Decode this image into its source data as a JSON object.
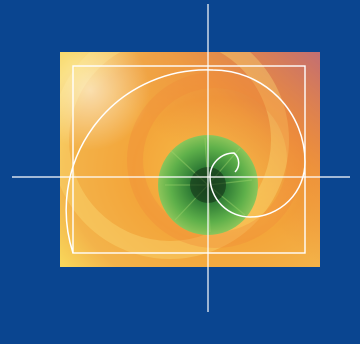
{
  "graphic": {
    "subject": "nautilus-spiral",
    "colors": {
      "background": "#0a4590",
      "photo_warm_light": "#f8dc5a",
      "photo_warm_mid": "#f3a83a",
      "photo_warm_deep": "#e0603a",
      "photo_corner_mauve": "#b9607a",
      "shell_center_green_light": "#6fb84a",
      "shell_center_green_dark": "#1d5a2a",
      "line_color": "#ffffff"
    },
    "icons": [
      "golden-spiral-icon",
      "crosshair-icon",
      "golden-rectangle-icon"
    ]
  }
}
